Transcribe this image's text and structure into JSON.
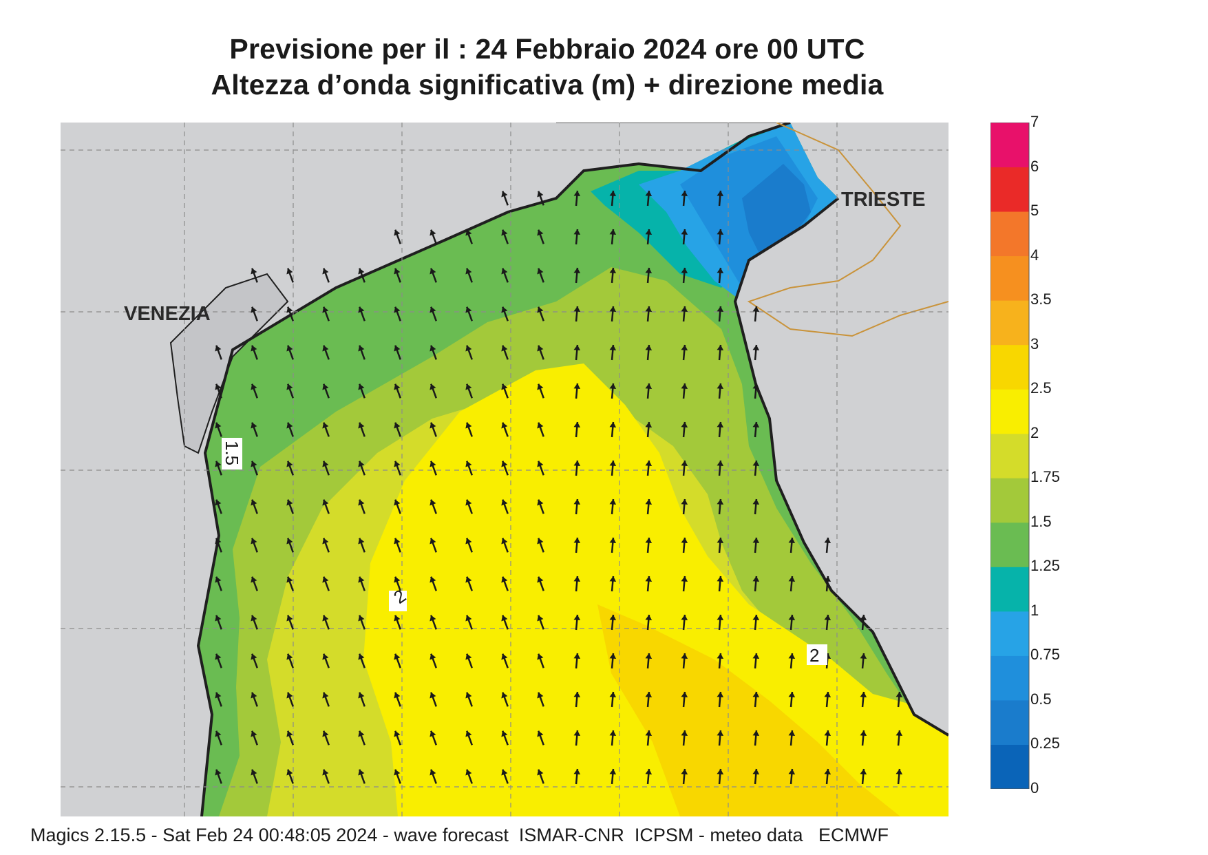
{
  "title": {
    "line1": "Previsione per il  :  24  Febbraio 2024   ore 00 UTC",
    "line2": "Altezza d’onda significativa (m) + direzione media"
  },
  "places": {
    "venezia": "VENEZIA",
    "trieste": "TRIESTE"
  },
  "contour_labels": {
    "left": "1.5",
    "mid": "2",
    "right": "2"
  },
  "legend": {
    "levels": [
      "0",
      "0.25",
      "0.5",
      "0.75",
      "1",
      "1.25",
      "1.5",
      "1.75",
      "2",
      "2.5",
      "3",
      "3.5",
      "4",
      "5",
      "6",
      "7"
    ],
    "colors": [
      "#0a64b8",
      "#1a7ccc",
      "#1f8fdc",
      "#27a3e6",
      "#06b3aa",
      "#6abc52",
      "#a3c93a",
      "#d4dc2a",
      "#f9ee00",
      "#f8d700",
      "#f7b21c",
      "#f6901f",
      "#f3772a",
      "#ea2a28",
      "#e8116a"
    ]
  },
  "map_colors": {
    "land": "#d0d1d3",
    "coast": "#1f1f1f",
    "border": "#c9933a",
    "grid": "#8c8c8c",
    "arrow": "#1a1a1a"
  },
  "wave_direction": "NNW",
  "footer": "Magics 2.15.5 - Sat Feb 24 00:48:05 2024 - wave forecast  ISMAR-CNR  ICPSM - meteo data   ECMWF"
}
